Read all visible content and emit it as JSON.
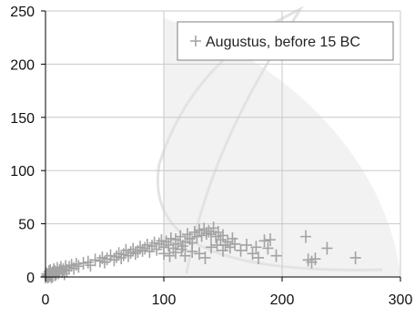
{
  "colors": {
    "marker": "#a3a3a3",
    "grid": "#c8c8c8",
    "axis": "#000000",
    "plot_background": "#ffffff",
    "legend_border": "#7f7f7f",
    "watermark": "#f2f2f2"
  },
  "chart_data": {
    "type": "scatter",
    "title": "",
    "xlabel": "",
    "ylabel": "",
    "xlim": [
      0,
      300
    ],
    "ylim": [
      0,
      250
    ],
    "x_ticks": [
      "0",
      "100",
      "200",
      "300"
    ],
    "y_ticks": [
      "0",
      "50",
      "100",
      "150",
      "200",
      "250"
    ],
    "grid": true,
    "legend_position": "top-right",
    "series": [
      {
        "name": "Augustus, before 15 BC",
        "marker": "plus",
        "points": [
          [
            0,
            0
          ],
          [
            1,
            1
          ],
          [
            1,
            3
          ],
          [
            2,
            0
          ],
          [
            2,
            2
          ],
          [
            3,
            5
          ],
          [
            3,
            1
          ],
          [
            4,
            2
          ],
          [
            4,
            6
          ],
          [
            5,
            0
          ],
          [
            5,
            3
          ],
          [
            6,
            4
          ],
          [
            6,
            1
          ],
          [
            7,
            7
          ],
          [
            8,
            2
          ],
          [
            8,
            5
          ],
          [
            9,
            3
          ],
          [
            10,
            8
          ],
          [
            11,
            4
          ],
          [
            12,
            6
          ],
          [
            13,
            9
          ],
          [
            14,
            5
          ],
          [
            15,
            7
          ],
          [
            16,
            3
          ],
          [
            17,
            10
          ],
          [
            18,
            6
          ],
          [
            20,
            9
          ],
          [
            22,
            11
          ],
          [
            24,
            8
          ],
          [
            26,
            12
          ],
          [
            28,
            10
          ],
          [
            32,
            13
          ],
          [
            36,
            14
          ],
          [
            38,
            11
          ],
          [
            42,
            16
          ],
          [
            46,
            15
          ],
          [
            48,
            18
          ],
          [
            50,
            14
          ],
          [
            52,
            17
          ],
          [
            55,
            20
          ],
          [
            58,
            16
          ],
          [
            60,
            19
          ],
          [
            62,
            22
          ],
          [
            64,
            18
          ],
          [
            66,
            21
          ],
          [
            68,
            25
          ],
          [
            70,
            20
          ],
          [
            72,
            23
          ],
          [
            74,
            26
          ],
          [
            76,
            22
          ],
          [
            78,
            24
          ],
          [
            80,
            28
          ],
          [
            82,
            25
          ],
          [
            84,
            27
          ],
          [
            86,
            30
          ],
          [
            88,
            24
          ],
          [
            90,
            29
          ],
          [
            92,
            32
          ],
          [
            94,
            26
          ],
          [
            96,
            31
          ],
          [
            98,
            34
          ],
          [
            100,
            28
          ],
          [
            100,
            22
          ],
          [
            102,
            33
          ],
          [
            104,
            30
          ],
          [
            106,
            36
          ],
          [
            108,
            27
          ],
          [
            110,
            35
          ],
          [
            112,
            31
          ],
          [
            114,
            38
          ],
          [
            116,
            29
          ],
          [
            118,
            33
          ],
          [
            120,
            40
          ],
          [
            122,
            36
          ],
          [
            124,
            32
          ],
          [
            126,
            42
          ],
          [
            128,
            38
          ],
          [
            130,
            44
          ],
          [
            132,
            39
          ],
          [
            134,
            45
          ],
          [
            136,
            41
          ],
          [
            138,
            43
          ],
          [
            140,
            40
          ],
          [
            142,
            46
          ],
          [
            144,
            38
          ],
          [
            146,
            42
          ],
          [
            148,
            35
          ],
          [
            150,
            39
          ],
          [
            152,
            30
          ],
          [
            154,
            33
          ],
          [
            156,
            28
          ],
          [
            158,
            36
          ],
          [
            160,
            31
          ],
          [
            165,
            25
          ],
          [
            170,
            30
          ],
          [
            175,
            22
          ],
          [
            178,
            28
          ],
          [
            180,
            18
          ],
          [
            185,
            34
          ],
          [
            188,
            27
          ],
          [
            190,
            35
          ],
          [
            195,
            20
          ],
          [
            220,
            38
          ],
          [
            222,
            16
          ],
          [
            225,
            14
          ],
          [
            228,
            17
          ],
          [
            238,
            27
          ],
          [
            262,
            18
          ],
          [
            105,
            20
          ],
          [
            110,
            23
          ],
          [
            115,
            26
          ],
          [
            118,
            20
          ],
          [
            124,
            24
          ],
          [
            130,
            22
          ],
          [
            135,
            18
          ],
          [
            140,
            28
          ],
          [
            145,
            30
          ],
          [
            150,
            25
          ]
        ]
      }
    ]
  }
}
